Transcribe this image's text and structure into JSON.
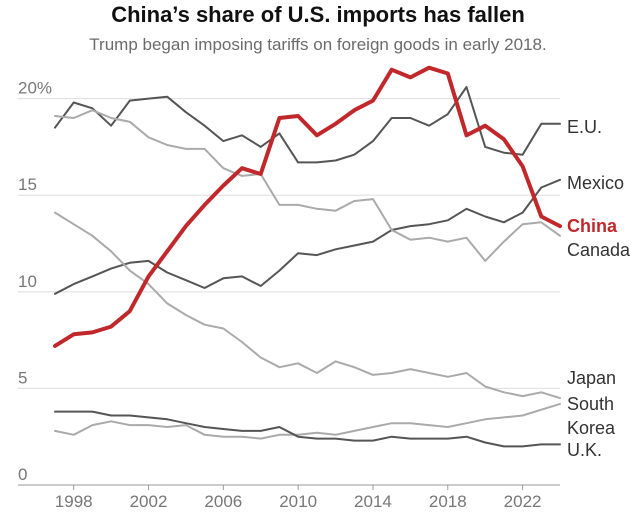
{
  "chart_data": {
    "type": "line",
    "title": "China’s share of U.S. imports has fallen",
    "subtitle": "Trump began imposing tariffs on foreign goods in early 2018.",
    "xlabel": "",
    "ylabel": "",
    "xlim": [
      1997,
      2024
    ],
    "ylim": [
      0,
      22
    ],
    "x_ticks": [
      1998,
      2002,
      2006,
      2010,
      2014,
      2018,
      2022
    ],
    "y_ticks": [
      {
        "value": 0,
        "label": "0"
      },
      {
        "value": 5,
        "label": "5"
      },
      {
        "value": 10,
        "label": "10"
      },
      {
        "value": 15,
        "label": "15"
      },
      {
        "value": 20,
        "label": "20%"
      }
    ],
    "grid": true,
    "x": [
      1997,
      1998,
      1999,
      2000,
      2001,
      2002,
      2003,
      2004,
      2005,
      2006,
      2007,
      2008,
      2009,
      2010,
      2011,
      2012,
      2013,
      2014,
      2015,
      2016,
      2017,
      2018,
      2019,
      2020,
      2021,
      2022,
      2023,
      2024
    ],
    "series": [
      {
        "name": "E.U.",
        "label_lines": [
          "E.U."
        ],
        "color": "#555555",
        "highlight": false,
        "values": [
          18.5,
          19.8,
          19.5,
          18.6,
          19.9,
          20.0,
          20.1,
          19.3,
          18.6,
          17.8,
          18.1,
          17.5,
          18.2,
          16.7,
          16.7,
          16.8,
          17.1,
          17.8,
          19.0,
          19.0,
          18.6,
          19.2,
          20.6,
          17.5,
          17.2,
          17.1,
          18.7,
          18.7
        ]
      },
      {
        "name": "Mexico",
        "label_lines": [
          "Mexico"
        ],
        "color": "#555555",
        "highlight": false,
        "values": [
          9.9,
          10.4,
          10.8,
          11.2,
          11.5,
          11.6,
          11.0,
          10.6,
          10.2,
          10.7,
          10.8,
          10.3,
          11.1,
          12.0,
          11.9,
          12.2,
          12.4,
          12.6,
          13.2,
          13.4,
          13.5,
          13.7,
          14.3,
          13.9,
          13.6,
          14.1,
          15.4,
          15.8
        ]
      },
      {
        "name": "China",
        "label_lines": [
          "China"
        ],
        "color": "#c0282b",
        "highlight": true,
        "values": [
          7.2,
          7.8,
          7.9,
          8.2,
          9.0,
          10.8,
          12.1,
          13.4,
          14.5,
          15.5,
          16.4,
          16.1,
          19.0,
          19.1,
          18.1,
          18.7,
          19.4,
          19.9,
          21.5,
          21.1,
          21.6,
          21.3,
          18.1,
          18.6,
          17.9,
          16.5,
          13.9,
          13.4
        ]
      },
      {
        "name": "Canada",
        "label_lines": [
          "Canada"
        ],
        "color": "#aaaaaa",
        "highlight": false,
        "values": [
          19.1,
          19.0,
          19.4,
          19.0,
          18.8,
          18.0,
          17.6,
          17.4,
          17.4,
          16.4,
          16.0,
          16.1,
          14.5,
          14.5,
          14.3,
          14.2,
          14.7,
          14.8,
          13.2,
          12.7,
          12.8,
          12.6,
          12.8,
          11.6,
          12.6,
          13.5,
          13.6,
          12.9
        ]
      },
      {
        "name": "Japan",
        "label_lines": [
          "Japan"
        ],
        "color": "#aaaaaa",
        "highlight": false,
        "values": [
          14.1,
          13.5,
          12.9,
          12.1,
          11.1,
          10.4,
          9.4,
          8.8,
          8.3,
          8.1,
          7.4,
          6.6,
          6.1,
          6.3,
          5.8,
          6.4,
          6.1,
          5.7,
          5.8,
          6.0,
          5.8,
          5.6,
          5.8,
          5.1,
          4.8,
          4.6,
          4.8,
          4.5
        ]
      },
      {
        "name": "South Korea",
        "label_lines": [
          "South",
          "Korea"
        ],
        "color": "#aaaaaa",
        "highlight": false,
        "values": [
          2.8,
          2.6,
          3.1,
          3.3,
          3.1,
          3.1,
          3.0,
          3.1,
          2.6,
          2.5,
          2.5,
          2.4,
          2.6,
          2.6,
          2.7,
          2.6,
          2.8,
          3.0,
          3.2,
          3.2,
          3.1,
          3.0,
          3.2,
          3.4,
          3.5,
          3.6,
          3.9,
          4.2
        ]
      },
      {
        "name": "U.K.",
        "label_lines": [
          "U.K."
        ],
        "color": "#555555",
        "highlight": false,
        "values": [
          3.8,
          3.8,
          3.8,
          3.6,
          3.6,
          3.5,
          3.4,
          3.2,
          3.0,
          2.9,
          2.8,
          2.8,
          3.0,
          2.5,
          2.4,
          2.4,
          2.3,
          2.3,
          2.5,
          2.4,
          2.4,
          2.4,
          2.5,
          2.2,
          2.0,
          2.0,
          2.1,
          2.1
        ]
      }
    ]
  }
}
